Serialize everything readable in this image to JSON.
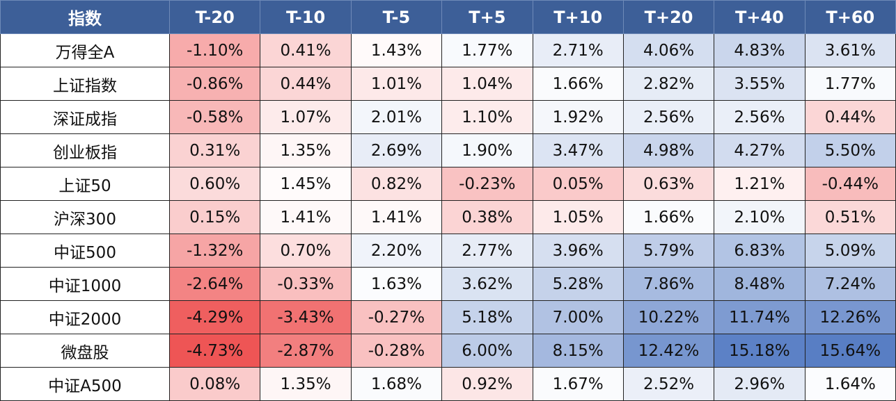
{
  "table": {
    "header": [
      "指数",
      "T-20",
      "T-10",
      "T-5",
      "T+5",
      "T+10",
      "T+20",
      "T+40",
      "T+60"
    ],
    "rows": [
      [
        "万得全A",
        "-1.10%",
        "0.41%",
        "1.43%",
        "1.77%",
        "2.71%",
        "4.06%",
        "4.83%",
        "3.61%"
      ],
      [
        "上证指数",
        "-0.86%",
        "0.44%",
        "1.01%",
        "1.04%",
        "1.66%",
        "2.82%",
        "3.55%",
        "1.77%"
      ],
      [
        "深证成指",
        "-0.58%",
        "1.07%",
        "2.01%",
        "1.10%",
        "1.92%",
        "2.56%",
        "2.56%",
        "0.44%"
      ],
      [
        "创业板指",
        "0.31%",
        "1.35%",
        "2.69%",
        "1.90%",
        "3.47%",
        "4.98%",
        "4.27%",
        "5.50%"
      ],
      [
        "上证50",
        "0.60%",
        "1.45%",
        "0.82%",
        "-0.23%",
        "0.05%",
        "0.63%",
        "1.21%",
        "-0.44%"
      ],
      [
        "沪深300",
        "0.15%",
        "1.41%",
        "1.41%",
        "0.38%",
        "1.05%",
        "1.66%",
        "2.10%",
        "0.51%"
      ],
      [
        "中证500",
        "-1.32%",
        "0.70%",
        "2.20%",
        "2.77%",
        "3.96%",
        "5.79%",
        "6.83%",
        "5.09%"
      ],
      [
        "中证1000",
        "-2.64%",
        "-0.33%",
        "1.63%",
        "3.62%",
        "5.28%",
        "7.86%",
        "8.48%",
        "7.24%"
      ],
      [
        "中证2000",
        "-4.29%",
        "-3.43%",
        "-0.27%",
        "5.18%",
        "7.00%",
        "10.22%",
        "11.74%",
        "12.26%"
      ],
      [
        "微盘股",
        "-4.73%",
        "-2.87%",
        "-0.28%",
        "6.00%",
        "8.15%",
        "12.42%",
        "15.18%",
        "15.64%"
      ],
      [
        "中证A500",
        "0.08%",
        "1.35%",
        "1.68%",
        "0.92%",
        "1.67%",
        "2.52%",
        "2.96%",
        "1.64%"
      ]
    ]
  }
}
